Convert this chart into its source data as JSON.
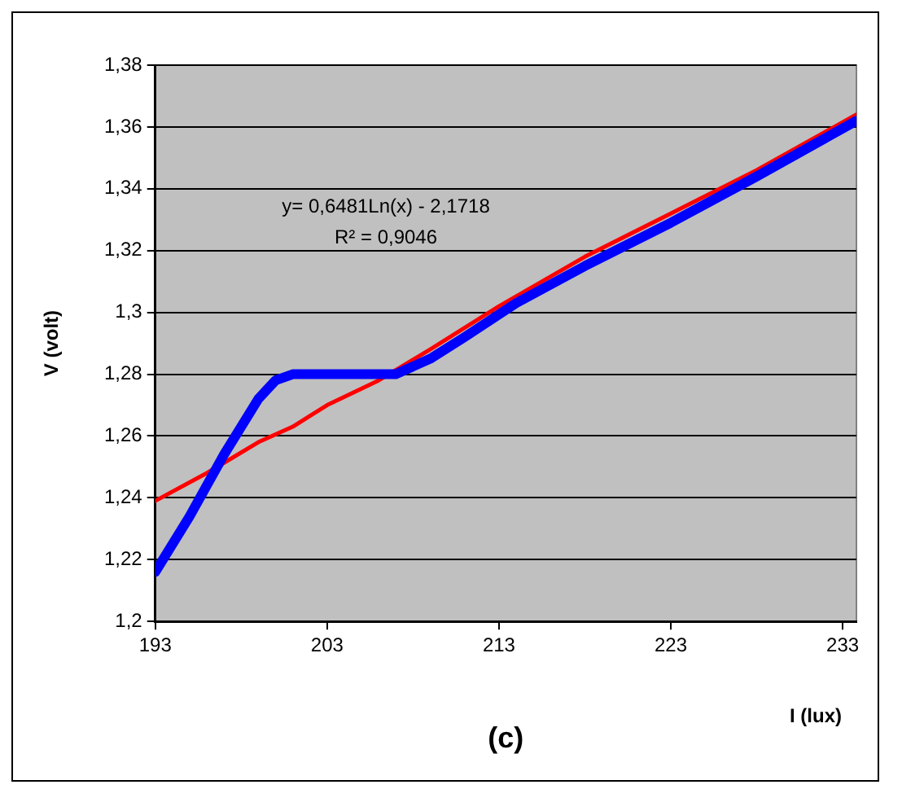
{
  "chart_data": {
    "type": "line",
    "xlabel": "I (lux)",
    "ylabel": "V (volt)",
    "annotations": [
      "y= 0,6481Ln(x) - 2,1718",
      "R² = 0,9046",
      "(c)"
    ],
    "series": [
      {
        "color": "#0000ff",
        "x": [
          193,
          195,
          197,
          199,
          200,
          201,
          207,
          209,
          211,
          214,
          218,
          223,
          228,
          233.8
        ],
        "values": [
          1.216,
          1.234,
          1.254,
          1.272,
          1.278,
          1.28,
          1.28,
          1.285,
          1.292,
          1.303,
          1.315,
          1.329,
          1.344,
          1.362
        ]
      },
      {
        "color": "#ff0000",
        "x": [
          193,
          196,
          199,
          201,
          203,
          206,
          209,
          213,
          218,
          223,
          228,
          233.8
        ],
        "values": [
          1.239,
          1.248,
          1.258,
          1.263,
          1.27,
          1.278,
          1.288,
          1.302,
          1.318,
          1.332,
          1.346,
          1.364
        ]
      }
    ],
    "xlim": [
      193,
      233.8
    ],
    "xticks": [
      193,
      203,
      213,
      223,
      233
    ],
    "ylim": [
      1.2,
      1.38
    ],
    "yticks": [
      {
        "value": 1.2,
        "label": "1,2"
      },
      {
        "value": 1.22,
        "label": "1,22"
      },
      {
        "value": 1.24,
        "label": "1,24"
      },
      {
        "value": 1.26,
        "label": "1,26"
      },
      {
        "value": 1.28,
        "label": "1,28"
      },
      {
        "value": 1.3,
        "label": "1,3"
      },
      {
        "value": 1.32,
        "label": "1,32"
      },
      {
        "value": 1.34,
        "label": "1,34"
      },
      {
        "value": 1.36,
        "label": "1,36"
      },
      {
        "value": 1.38,
        "label": "1,38"
      }
    ],
    "grid": "y",
    "legend": false,
    "marker": "none",
    "line_style": "solid"
  }
}
